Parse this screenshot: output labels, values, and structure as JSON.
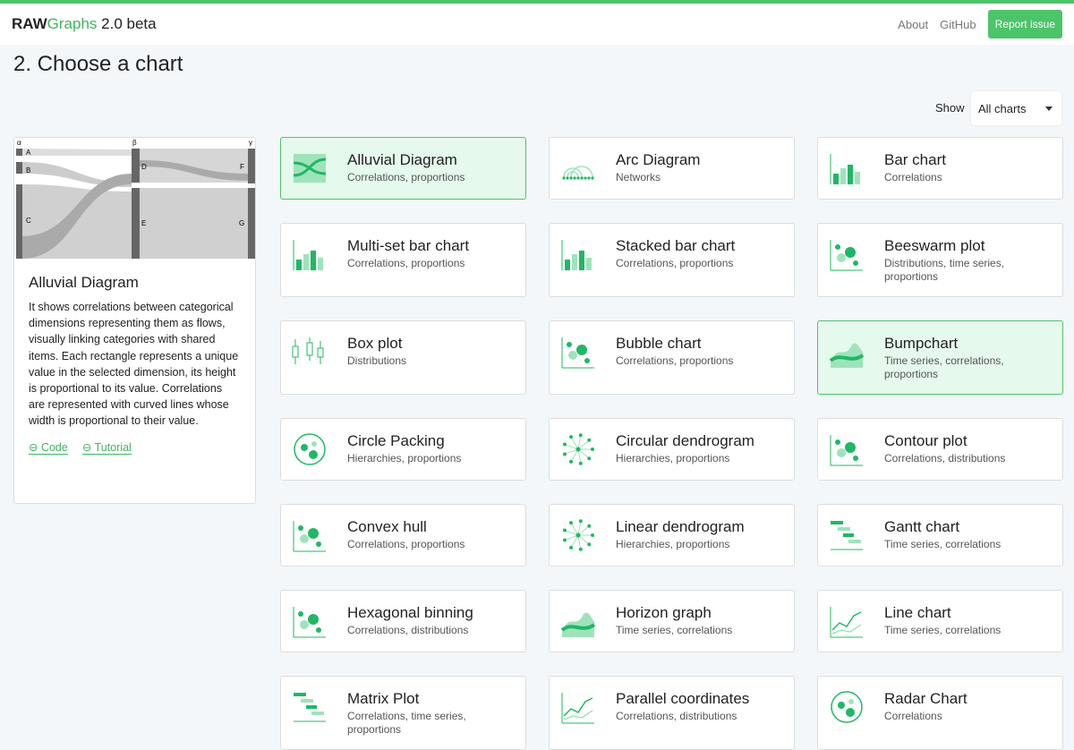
{
  "header": {
    "brand_bold": "RAW",
    "brand_green": "Graphs",
    "brand_version": " 2.0 beta",
    "links": [
      "About",
      "GitHub"
    ],
    "report": "Report issue"
  },
  "page": {
    "title": "2. Choose a chart",
    "show_label": "Show",
    "filter": "All charts"
  },
  "preview": {
    "title": "Alluvial Diagram",
    "description": "It shows correlations between categorical dimensions representing them as flows, visually linking categories with shared items. Each rectangle represents a unique value in the selected dimension, its height is proportional to its value. Correlations are represented with curved lines whose width is proportional to their value.",
    "code": "Code",
    "tutorial": "Tutorial",
    "labels": [
      "α",
      "β",
      "γ",
      "A",
      "B",
      "C",
      "D",
      "E",
      "F",
      "G"
    ]
  },
  "colors": {
    "accent": "#4cc46a",
    "icon": "#1fb865",
    "icon_light": "#9fe3bb"
  },
  "charts": [
    {
      "title": "Alluvial Diagram",
      "sub": "Correlations, proportions",
      "icon": "alluvial"
    },
    {
      "title": "Arc Diagram",
      "sub": "Networks",
      "icon": "arc"
    },
    {
      "title": "Bar chart",
      "sub": "Correlations",
      "icon": "bar"
    },
    {
      "title": "Multi-set bar chart",
      "sub": "Correlations, proportions",
      "icon": "bar"
    },
    {
      "title": "Stacked bar chart",
      "sub": "Correlations, proportions",
      "icon": "bar"
    },
    {
      "title": "Beeswarm plot",
      "sub": "Distributions, time series, proportions",
      "icon": "dots"
    },
    {
      "title": "Box plot",
      "sub": "Distributions",
      "icon": "box"
    },
    {
      "title": "Bubble chart",
      "sub": "Correlations, proportions",
      "icon": "dots"
    },
    {
      "title": "Bumpchart",
      "sub": "Time series, correlations, proportions",
      "icon": "area"
    },
    {
      "title": "Circle Packing",
      "sub": "Hierarchies, proportions",
      "icon": "circle"
    },
    {
      "title": "Circular dendrogram",
      "sub": "Hierarchies, proportions",
      "icon": "radial"
    },
    {
      "title": "Contour plot",
      "sub": "Correlations, distributions",
      "icon": "dots"
    },
    {
      "title": "Convex hull",
      "sub": "Correlations, proportions",
      "icon": "dots"
    },
    {
      "title": "Linear dendrogram",
      "sub": "Hierarchies, proportions",
      "icon": "radial"
    },
    {
      "title": "Gantt chart",
      "sub": "Time series, correlations",
      "icon": "gantt"
    },
    {
      "title": "Hexagonal binning",
      "sub": "Correlations, distributions",
      "icon": "dots"
    },
    {
      "title": "Horizon graph",
      "sub": "Time series, correlations",
      "icon": "area"
    },
    {
      "title": "Line chart",
      "sub": "Time series, correlations",
      "icon": "line"
    },
    {
      "title": "Matrix Plot",
      "sub": "Correlations, time series, proportions",
      "icon": "gantt"
    },
    {
      "title": "Parallel coordinates",
      "sub": "Correlations, distributions",
      "icon": "line"
    },
    {
      "title": "Radar Chart",
      "sub": "Correlations",
      "icon": "circle"
    }
  ]
}
